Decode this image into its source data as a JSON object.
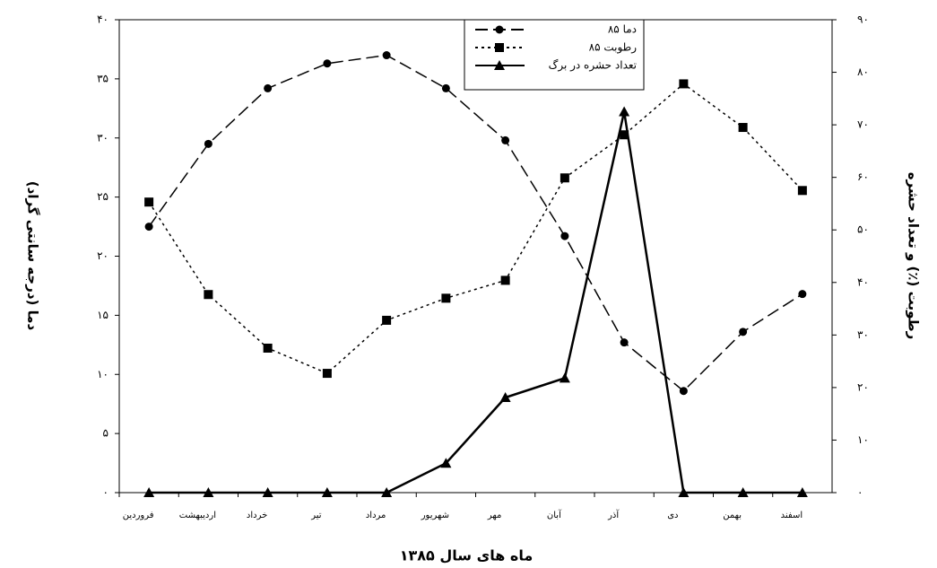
{
  "chart_data": {
    "type": "line",
    "x_label": "ماه های سال ۱۳۸۵",
    "y_label": "دما (درجه سانتی گراد)",
    "y2_label": "رطوبت (٪) و تعداد حشره",
    "categories": [
      "فروردین",
      "اردیبهشت",
      "خرداد",
      "تیر",
      "مرداد",
      "شهریور",
      "مهر",
      "آبان",
      "آذر",
      "دی",
      "بهمن",
      "اسفند"
    ],
    "ylim": [
      0,
      40
    ],
    "yticks": [
      {
        "value": 0,
        "label": "۰"
      },
      {
        "value": 5,
        "label": "۵"
      },
      {
        "value": 10,
        "label": "۱۰"
      },
      {
        "value": 15,
        "label": "۱۵"
      },
      {
        "value": 20,
        "label": "۲۰"
      },
      {
        "value": 25,
        "label": "۲۵"
      },
      {
        "value": 30,
        "label": "۳۰"
      },
      {
        "value": 35,
        "label": "۳۵"
      },
      {
        "value": 40,
        "label": "۴۰"
      }
    ],
    "y2lim": [
      0,
      90
    ],
    "y2ticks": [
      {
        "value": 0,
        "label": "۰"
      },
      {
        "value": 10,
        "label": "۱۰"
      },
      {
        "value": 20,
        "label": "۲۰"
      },
      {
        "value": 30,
        "label": "۳۰"
      },
      {
        "value": 40,
        "label": "۴۰"
      },
      {
        "value": 50,
        "label": "۵۰"
      },
      {
        "value": 60,
        "label": "۶۰"
      },
      {
        "value": 70,
        "label": "۷۰"
      },
      {
        "value": 80,
        "label": "۸۰"
      },
      {
        "value": 90,
        "label": "۹۰"
      }
    ],
    "series": [
      {
        "name": "دما ۸۵",
        "color": "#000000",
        "line_style": "dashed",
        "marker": "circle",
        "values": [
          22.5,
          29.5,
          34.2,
          36.3,
          37.0,
          34.2,
          29.8,
          21.7,
          12.7,
          8.6,
          13.6,
          16.8
        ]
      },
      {
        "name": "رطوبت ۸۵",
        "color": "#000000",
        "line_style": "dotted",
        "marker": "square",
        "axis": "y2",
        "values": [
          55.3,
          37.7,
          27.5,
          22.7,
          32.8,
          37.0,
          40.4,
          59.9,
          68.1,
          77.8,
          69.5,
          57.5
        ]
      },
      {
        "name": "تعداد حشره در برگ",
        "color": "#000000",
        "line_style": "solid",
        "marker": "triangle",
        "axis": "y2",
        "values": [
          0,
          0,
          0,
          0,
          0,
          5.6,
          18.1,
          21.8,
          72.5,
          0,
          0,
          0
        ]
      }
    ],
    "grid": false
  }
}
